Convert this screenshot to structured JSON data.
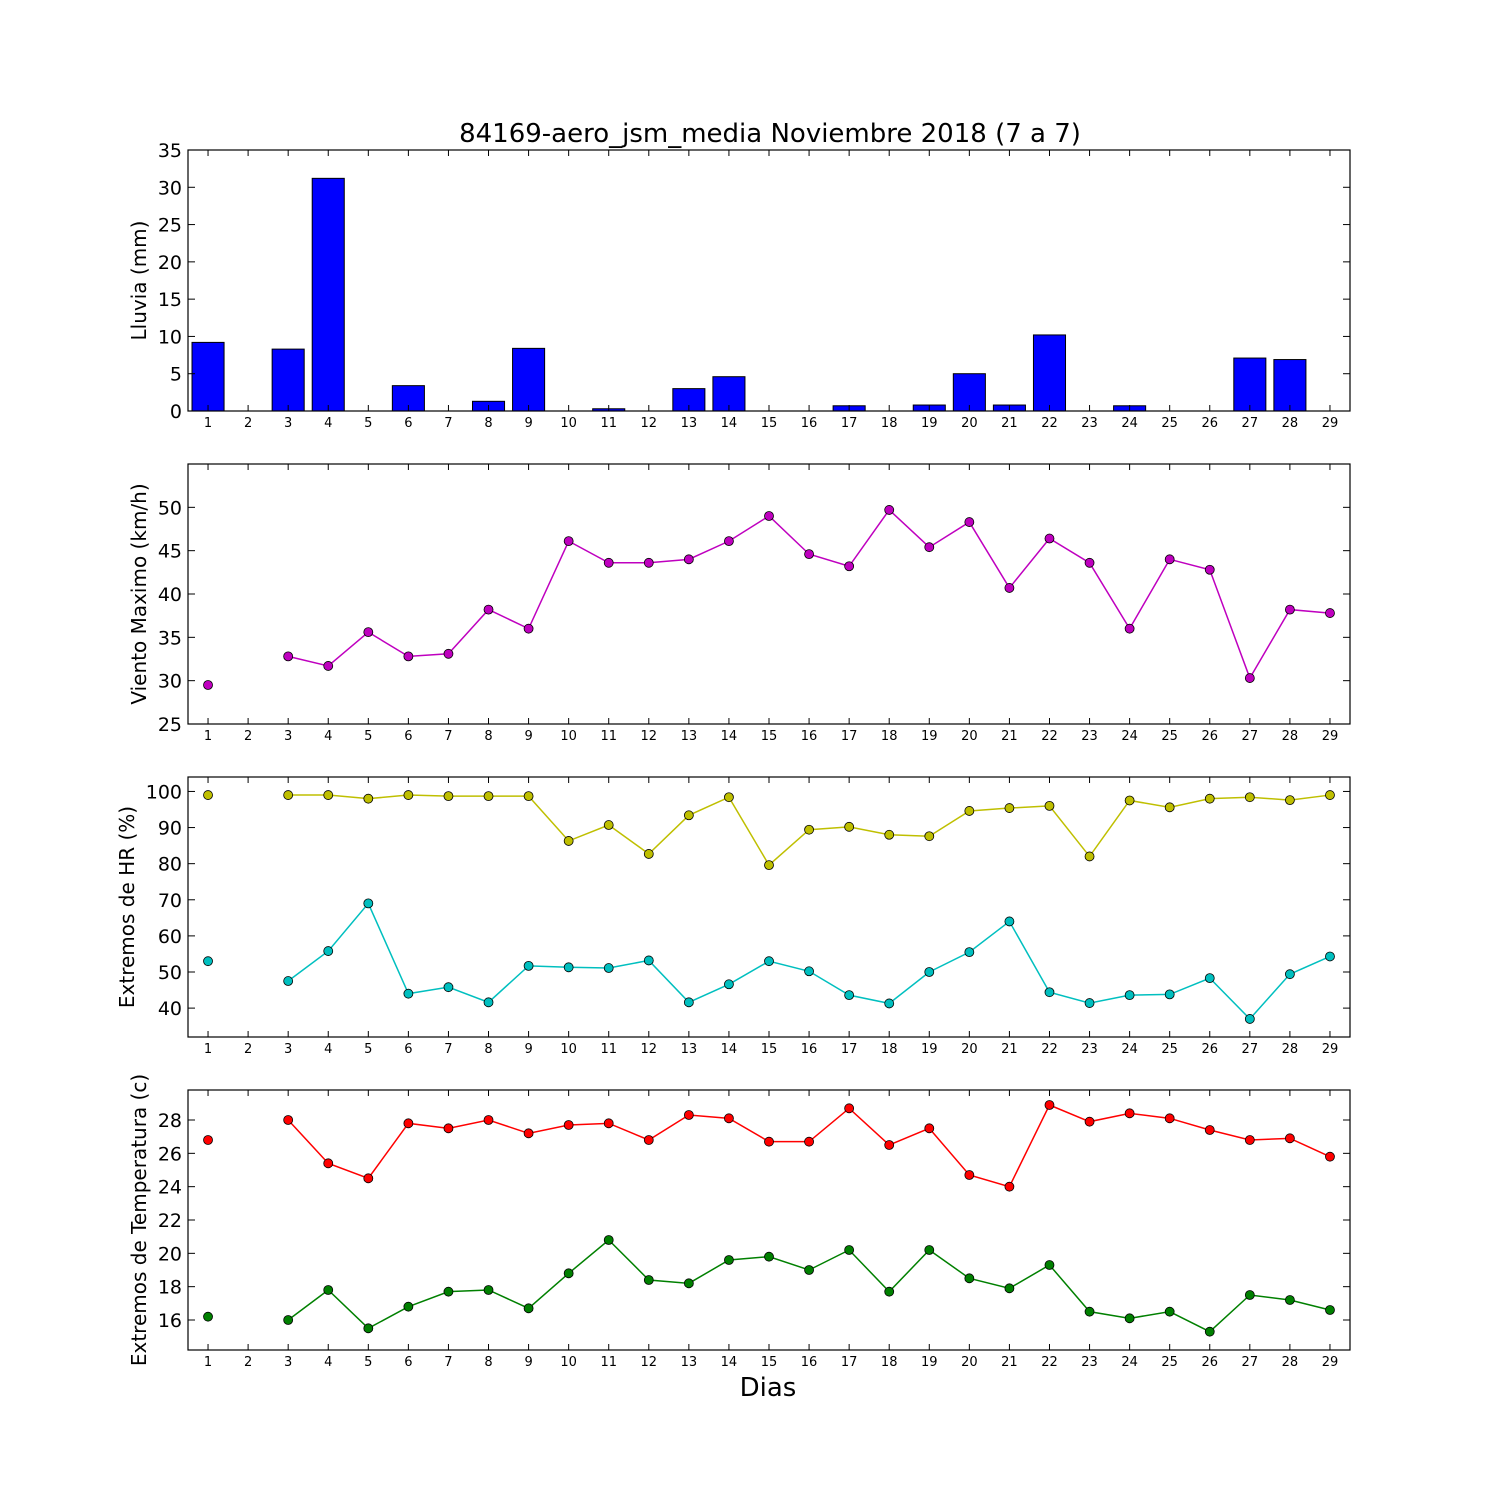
{
  "figure": {
    "title": "84169-aero_jsm_media Noviembre 2018  (7 a 7)",
    "xlabel": "Dias"
  },
  "chart_data": [
    {
      "type": "bar",
      "ylabel": "Lluvia (mm)",
      "ylim": [
        0,
        35
      ],
      "yticks": [
        0,
        5,
        10,
        15,
        20,
        25,
        30,
        35
      ],
      "xticks": [
        1,
        2,
        3,
        4,
        5,
        6,
        7,
        8,
        9,
        10,
        11,
        12,
        13,
        14,
        15,
        16,
        17,
        18,
        19,
        20,
        21,
        22,
        23,
        24,
        25,
        26,
        27,
        28,
        29
      ],
      "categories": [
        1,
        2,
        3,
        4,
        5,
        6,
        7,
        8,
        9,
        10,
        11,
        12,
        13,
        14,
        15,
        16,
        17,
        18,
        19,
        20,
        21,
        22,
        23,
        24,
        25,
        26,
        27,
        28
      ],
      "values": [
        9.2,
        0,
        8.3,
        31.2,
        0,
        3.4,
        0,
        1.3,
        8.4,
        0,
        0.3,
        0,
        3.0,
        4.6,
        0,
        0,
        0.7,
        0,
        0.8,
        5.0,
        0.8,
        10.2,
        0,
        0.7,
        0,
        0,
        7.1,
        6.9
      ],
      "color": "#0000ff"
    },
    {
      "type": "line",
      "ylabel": "Viento Maximo (km/h)",
      "ylim": [
        25,
        55
      ],
      "yticks": [
        25,
        30,
        35,
        40,
        45,
        50
      ],
      "xticks": [
        1,
        2,
        3,
        4,
        5,
        6,
        7,
        8,
        9,
        10,
        11,
        12,
        13,
        14,
        15,
        16,
        17,
        18,
        19,
        20,
        21,
        22,
        23,
        24,
        25,
        26,
        27,
        28,
        29
      ],
      "series": [
        {
          "color": "#bf00bf",
          "x": [
            1,
            2,
            3,
            4,
            5,
            6,
            7,
            8,
            9,
            10,
            11,
            12,
            13,
            14,
            15,
            16,
            17,
            18,
            19,
            20,
            21,
            22,
            23,
            24,
            25,
            26,
            27,
            28,
            29
          ],
          "values": [
            29.5,
            null,
            32.8,
            31.7,
            35.6,
            32.8,
            33.1,
            38.2,
            36.0,
            46.1,
            43.6,
            43.6,
            44.0,
            46.1,
            49.0,
            44.6,
            43.2,
            49.7,
            45.4,
            48.3,
            40.7,
            46.4,
            43.6,
            36.0,
            44.0,
            42.8,
            30.3,
            38.2,
            37.8
          ]
        }
      ]
    },
    {
      "type": "line",
      "ylabel": "Extremos de HR (%)",
      "ylim": [
        32,
        104
      ],
      "yticks": [
        40,
        50,
        60,
        70,
        80,
        90,
        100
      ],
      "xticks": [
        1,
        2,
        3,
        4,
        5,
        6,
        7,
        8,
        9,
        10,
        11,
        12,
        13,
        14,
        15,
        16,
        17,
        18,
        19,
        20,
        21,
        22,
        23,
        24,
        25,
        26,
        27,
        28,
        29
      ],
      "series": [
        {
          "color": "#bfbf00",
          "x": [
            1,
            2,
            3,
            4,
            5,
            6,
            7,
            8,
            9,
            10,
            11,
            12,
            13,
            14,
            15,
            16,
            17,
            18,
            19,
            20,
            21,
            22,
            23,
            24,
            25,
            26,
            27,
            28,
            29
          ],
          "values": [
            99,
            null,
            99,
            99,
            98,
            99,
            98.7,
            98.7,
            98.7,
            86.3,
            90.7,
            82.7,
            93.4,
            98.4,
            79.6,
            89.4,
            90.2,
            88,
            87.6,
            94.6,
            95.4,
            96,
            82,
            97.5,
            95.6,
            98,
            98.4,
            97.6,
            99
          ]
        },
        {
          "color": "#00bfbf",
          "x": [
            1,
            2,
            3,
            4,
            5,
            6,
            7,
            8,
            9,
            10,
            11,
            12,
            13,
            14,
            15,
            16,
            17,
            18,
            19,
            20,
            21,
            22,
            23,
            24,
            25,
            26,
            27,
            28,
            29
          ],
          "values": [
            53,
            null,
            47.5,
            55.8,
            69,
            44,
            45.8,
            41.6,
            51.7,
            51.3,
            51.1,
            53.2,
            41.6,
            46.6,
            53,
            50.2,
            43.6,
            41.3,
            50,
            55.5,
            64,
            44.4,
            41.4,
            43.6,
            43.8,
            48.3,
            37,
            49.4,
            54.3
          ]
        }
      ]
    },
    {
      "type": "line",
      "ylabel": "Extremos de Temperatura (c)",
      "ylim": [
        14.2,
        29.8
      ],
      "yticks": [
        16,
        18,
        20,
        22,
        24,
        26,
        28
      ],
      "xticks": [
        1,
        2,
        3,
        4,
        5,
        6,
        7,
        8,
        9,
        10,
        11,
        12,
        13,
        14,
        15,
        16,
        17,
        18,
        19,
        20,
        21,
        22,
        23,
        24,
        25,
        26,
        27,
        28,
        29
      ],
      "series": [
        {
          "color": "#ff0000",
          "x": [
            1,
            2,
            3,
            4,
            5,
            6,
            7,
            8,
            9,
            10,
            11,
            12,
            13,
            14,
            15,
            16,
            17,
            18,
            19,
            20,
            21,
            22,
            23,
            24,
            25,
            26,
            27,
            28,
            29
          ],
          "values": [
            26.8,
            null,
            28,
            25.4,
            24.5,
            27.8,
            27.5,
            28,
            27.2,
            27.7,
            27.8,
            26.8,
            28.3,
            28.1,
            26.7,
            26.7,
            28.7,
            26.5,
            27.5,
            24.7,
            24,
            28.9,
            27.9,
            28.4,
            28.1,
            27.4,
            26.8,
            26.9,
            25.8
          ]
        },
        {
          "color": "#008000",
          "x": [
            1,
            2,
            3,
            4,
            5,
            6,
            7,
            8,
            9,
            10,
            11,
            12,
            13,
            14,
            15,
            16,
            17,
            18,
            19,
            20,
            21,
            22,
            23,
            24,
            25,
            26,
            27,
            28,
            29
          ],
          "values": [
            16.2,
            null,
            16,
            17.8,
            15.5,
            16.8,
            17.7,
            17.8,
            16.7,
            18.8,
            20.8,
            18.4,
            18.2,
            19.6,
            19.8,
            19,
            20.2,
            17.7,
            20.2,
            18.5,
            17.9,
            19.3,
            16.5,
            16.1,
            16.5,
            15.3,
            17.5,
            17.2,
            16.6
          ]
        }
      ]
    }
  ]
}
